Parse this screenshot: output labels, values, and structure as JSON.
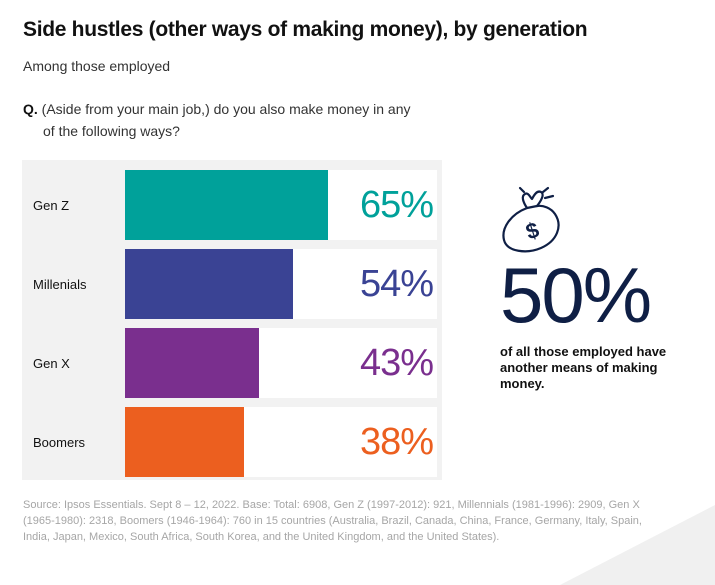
{
  "title": "Side hustles (other ways of making money), by generation",
  "subtitle": "Among those employed",
  "question": {
    "prefix": "Q.",
    "line1": "(Aside from your main job,) do you also make money in any",
    "line2": "of the following ways?"
  },
  "chart_data": {
    "type": "bar",
    "orientation": "horizontal",
    "categories": [
      "Gen Z",
      "Millenials",
      "Gen X",
      "Boomers"
    ],
    "values": [
      65,
      54,
      43,
      38
    ],
    "value_labels": [
      "65%",
      "54%",
      "43%",
      "38%"
    ],
    "colors": [
      "#00a19a",
      "#3a4394",
      "#7a2f8e",
      "#ec5f1f"
    ],
    "xlim": [
      0,
      100
    ],
    "unit": "%"
  },
  "highlight": {
    "value": "50%",
    "description": "of all those employed have another means of making money.",
    "color": "#0f1f45"
  },
  "source": "Source: Ipsos Essentials. Sept 8 – 12, 2022. Base: Total: 6908, Gen Z (1997-2012): 921, Millennials (1981-1996): 2909, Gen X (1965-1980): 2318, Boomers (1946-1964): 760 in 15 countries (Australia, Brazil, Canada, China, France, Germany, Italy, Spain, India, Japan, Mexico, South Africa, South Korea, and the United Kingdom, and the United States).",
  "icons": {
    "money_bag": "money-bag-icon"
  }
}
